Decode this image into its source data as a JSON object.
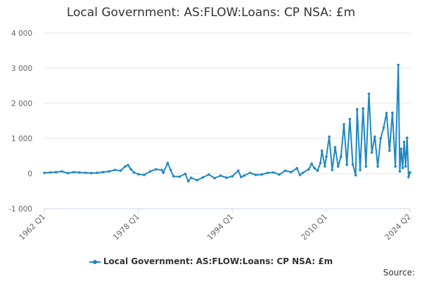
{
  "chart_data": {
    "type": "line",
    "title": "Local Government: AS:FLOW:Loans: CP NSA: £m",
    "xlabel": "",
    "ylabel": "",
    "ylim": [
      -1000,
      4000
    ],
    "yticks": [
      -1000,
      0,
      1000,
      2000,
      3000,
      4000
    ],
    "ytick_labels": [
      "-1 000",
      "0",
      "1 000",
      "2 000",
      "3 000",
      "4 000"
    ],
    "xlim": [
      "1962 Q1",
      "2024 Q2"
    ],
    "xticks": [
      "1962 Q1",
      "1978 Q1",
      "1994 Q1",
      "2010 Q1",
      "2024 Q2"
    ],
    "grid": "horizontal",
    "legend_position": "bottom",
    "series": [
      {
        "name": "Local Government: AS:FLOW:Loans: CP NSA: £m",
        "color": "#1f88c0",
        "points": [
          [
            "1962 Q1",
            20
          ],
          [
            "1963 Q1",
            30
          ],
          [
            "1964 Q1",
            40
          ],
          [
            "1965 Q1",
            60
          ],
          [
            "1966 Q1",
            10
          ],
          [
            "1967 Q1",
            40
          ],
          [
            "1968 Q1",
            30
          ],
          [
            "1969 Q1",
            20
          ],
          [
            "1970 Q1",
            10
          ],
          [
            "1971 Q1",
            20
          ],
          [
            "1972 Q1",
            40
          ],
          [
            "1973 Q1",
            60
          ],
          [
            "1974 Q1",
            100
          ],
          [
            "1975 Q1",
            80
          ],
          [
            "1975 Q4",
            200
          ],
          [
            "1976 Q2",
            240
          ],
          [
            "1976 Q4",
            120
          ],
          [
            "1977 Q2",
            30
          ],
          [
            "1978 Q1",
            -20
          ],
          [
            "1979 Q1",
            -40
          ],
          [
            "1980 Q1",
            60
          ],
          [
            "1981 Q1",
            120
          ],
          [
            "1982 Q1",
            100
          ],
          [
            "1982 Q2",
            20
          ],
          [
            "1983 Q1",
            300
          ],
          [
            "1983 Q3",
            100
          ],
          [
            "1984 Q1",
            -80
          ],
          [
            "1985 Q1",
            -90
          ],
          [
            "1986 Q1",
            -10
          ],
          [
            "1986 Q3",
            -220
          ],
          [
            "1987 Q1",
            -120
          ],
          [
            "1988 Q1",
            -190
          ],
          [
            "1989 Q1",
            -110
          ],
          [
            "1990 Q1",
            -30
          ],
          [
            "1991 Q1",
            -130
          ],
          [
            "1992 Q1",
            -60
          ],
          [
            "1993 Q1",
            -120
          ],
          [
            "1994 Q1",
            -80
          ],
          [
            "1995 Q1",
            80
          ],
          [
            "1995 Q3",
            -100
          ],
          [
            "1996 Q1",
            -60
          ],
          [
            "1997 Q1",
            20
          ],
          [
            "1998 Q1",
            -40
          ],
          [
            "1999 Q1",
            -30
          ],
          [
            "2000 Q1",
            20
          ],
          [
            "2001 Q1",
            30
          ],
          [
            "2002 Q1",
            -30
          ],
          [
            "2003 Q1",
            80
          ],
          [
            "2004 Q1",
            40
          ],
          [
            "2005 Q1",
            150
          ],
          [
            "2005 Q3",
            -40
          ],
          [
            "2006 Q1",
            20
          ],
          [
            "2007 Q1",
            120
          ],
          [
            "2007 Q3",
            280
          ],
          [
            "2008 Q1",
            150
          ],
          [
            "2008 Q3",
            80
          ],
          [
            "2009 Q1",
            300
          ],
          [
            "2009 Q2",
            650
          ],
          [
            "2009 Q4",
            200
          ],
          [
            "2010 Q1",
            480
          ],
          [
            "2010 Q3",
            1050
          ],
          [
            "2011 Q1",
            100
          ],
          [
            "2011 Q3",
            750
          ],
          [
            "2012 Q1",
            200
          ],
          [
            "2012 Q3",
            480
          ],
          [
            "2013 Q1",
            1400
          ],
          [
            "2013 Q3",
            250
          ],
          [
            "2014 Q1",
            1550
          ],
          [
            "2014 Q3",
            260
          ],
          [
            "2015 Q1",
            -50
          ],
          [
            "2015 Q2",
            1830
          ],
          [
            "2015 Q4",
            100
          ],
          [
            "2016 Q2",
            1850
          ],
          [
            "2016 Q4",
            200
          ],
          [
            "2017 Q2",
            2270
          ],
          [
            "2017 Q4",
            600
          ],
          [
            "2018 Q2",
            1050
          ],
          [
            "2018 Q4",
            200
          ],
          [
            "2019 Q2",
            1000
          ],
          [
            "2019 Q4",
            1300
          ],
          [
            "2020 Q2",
            1720
          ],
          [
            "2020 Q4",
            650
          ],
          [
            "2021 Q2",
            1730
          ],
          [
            "2021 Q4",
            200
          ],
          [
            "2022 Q2",
            3090
          ],
          [
            "2022 Q3",
            60
          ],
          [
            "2022 Q4",
            700
          ],
          [
            "2023 Q1",
            160
          ],
          [
            "2023 Q2",
            900
          ],
          [
            "2023 Q3",
            200
          ],
          [
            "2023 Q4",
            1020
          ],
          [
            "2024 Q1",
            -100
          ],
          [
            "2024 Q2",
            30
          ]
        ]
      }
    ]
  },
  "footer": {
    "source_label": "Source:"
  }
}
